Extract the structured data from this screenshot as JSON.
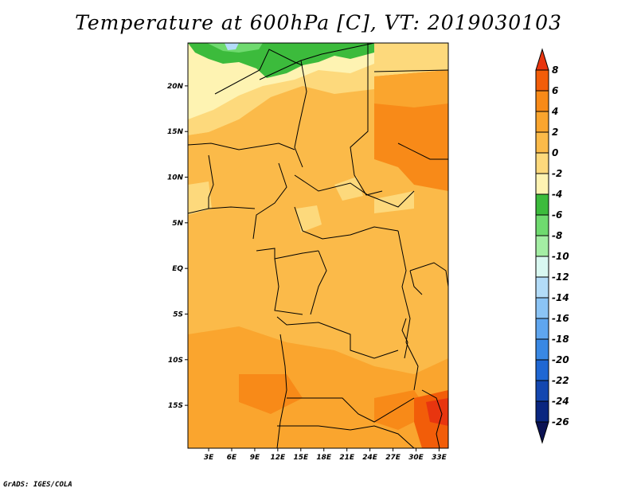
{
  "title": "Temperature at 600hPa [C], VT: 2019030103",
  "credit": "GrADS: IGES/COLA",
  "chart_data": {
    "type": "heatmap",
    "variable": "Temperature at 600hPa",
    "units": "C",
    "valid_time": "2019030103",
    "x_axis": {
      "ticks": [
        "3E",
        "6E",
        "9E",
        "12E",
        "15E",
        "18E",
        "21E",
        "24E",
        "27E",
        "30E",
        "33E"
      ],
      "tick_values": [
        3,
        6,
        9,
        12,
        15,
        18,
        21,
        24,
        27,
        30,
        33
      ],
      "range": [
        0.3,
        34.2
      ]
    },
    "y_axis": {
      "ticks": [
        "20N",
        "15N",
        "10N",
        "5N",
        "EQ",
        "5S",
        "10S",
        "15S"
      ],
      "tick_values": [
        20,
        15,
        10,
        5,
        0,
        -5,
        -10,
        -15
      ],
      "range": [
        -19.7,
        24.7
      ]
    },
    "colorbar": {
      "labels": [
        "8",
        "6",
        "4",
        "2",
        "0",
        "-2",
        "-4",
        "-6",
        "-8",
        "-10",
        "-12",
        "-14",
        "-16",
        "-18",
        "-20",
        "-22",
        "-24",
        "-26"
      ],
      "colors": [
        "#e8350f",
        "#f25d09",
        "#f88a18",
        "#faa52e",
        "#fbba49",
        "#fdd97c",
        "#fef3b2",
        "#3cbb3c",
        "#6fda6f",
        "#a4eea4",
        "#d9f8f1",
        "#b3dcf8",
        "#8bc4f5",
        "#5fa6ef",
        "#3988e4",
        "#1f67d3",
        "#1447b0",
        "#0a2680",
        "#0b1253"
      ],
      "extends": "both"
    },
    "regions": [
      {
        "label": "north-border cold",
        "color": "#3cbb3c"
      },
      {
        "label": "north-border cold core",
        "color": "#a4eea4"
      },
      {
        "label": "sahara warm",
        "color": "#fbba49"
      },
      {
        "label": "south-east warm",
        "color": "#f88a18"
      },
      {
        "label": "south-east hot",
        "color": "#e8350f"
      }
    ]
  }
}
